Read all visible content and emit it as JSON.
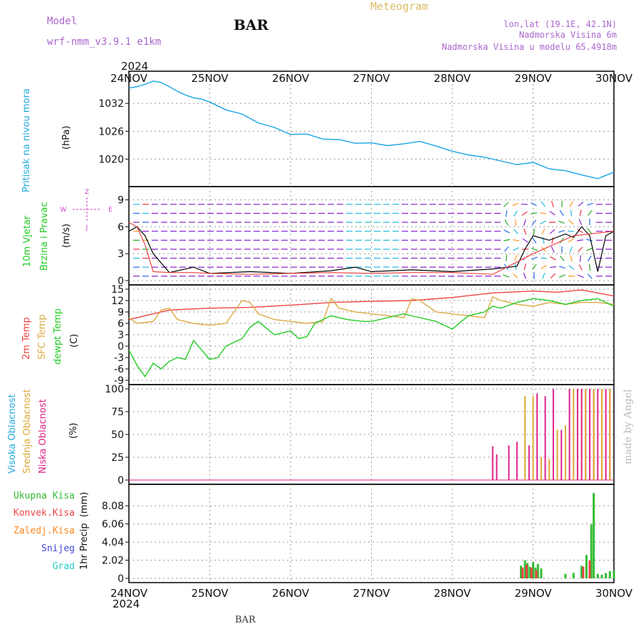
{
  "header": {
    "model_label": "Model",
    "model_name": "wrf-nmm_v3.9.1 e1km",
    "station": "BAR",
    "app_title": "Meteogram",
    "coords": "lon,lat (19.1E, 42.1N)",
    "elevation": "Nadmorska Visina 6m",
    "model_elevation": "Nadmorska Visina u modelu 65.4918m",
    "year": "2024",
    "footer_station": "BAR",
    "credit": "made by Angel"
  },
  "colors": {
    "pressure": "#1aa3e6",
    "temp2m": "#ee4444",
    "sfc_temp": "#ddaa44",
    "dewpoint": "#22cc22",
    "high_cloud": "#22aadd",
    "mid_cloud": "#ddaa33",
    "low_cloud": "#dd2288",
    "total_precip": "#33bb33",
    "conv_precip": "#ee4444",
    "frozen_precip": "#ff8822",
    "snow": "#4444dd",
    "hail": "#22cccc",
    "wind_speed_line": "#000000",
    "wind_gust_line": "#ee4444",
    "wind_compass": "#cc44cc",
    "header_text": "#aa66cc",
    "title_text": "#ddbb66"
  },
  "chart_data": [
    {
      "type": "line",
      "panel": "pressure",
      "ylabel_main": "Pritisak na nivou mora",
      "ylabel_unit": "(hPa)",
      "x_ticks": [
        "24NOV",
        "25NOV",
        "26NOV",
        "27NOV",
        "28NOV",
        "29NOV",
        "30NOV"
      ],
      "yticks": [
        "1020",
        "1026",
        "1032"
      ],
      "ylim": [
        1015,
        1038
      ],
      "series": [
        {
          "x": [
            0,
            0.1,
            0.2,
            0.3,
            0.4,
            0.5,
            0.6,
            0.7,
            0.8,
            0.9,
            1.0,
            1.2,
            1.4,
            1.6,
            1.8,
            2.0,
            2.2,
            2.4,
            2.6,
            2.8,
            3.0,
            3.2,
            3.4,
            3.6,
            3.8,
            4.0,
            4.2,
            4.4,
            4.6,
            4.8,
            5.0,
            5.2,
            5.4,
            5.6,
            5.8,
            6.0
          ],
          "values": [
            1035.3,
            1035.6,
            1036.1,
            1036.8,
            1036.5,
            1035.6,
            1034.6,
            1033.8,
            1033.2,
            1032.9,
            1032.3,
            1030.6,
            1029.7,
            1027.8,
            1026.8,
            1025.3,
            1025.4,
            1024.3,
            1024.2,
            1023.4,
            1023.5,
            1022.9,
            1023.3,
            1023.8,
            1022.8,
            1021.7,
            1020.9,
            1020.4,
            1019.6,
            1018.8,
            1019.3,
            1017.9,
            1017.5,
            1016.6,
            1015.8,
            1017.2
          ]
        }
      ]
    },
    {
      "type": "line",
      "panel": "wind",
      "ylabel_main": "10m Vjetar",
      "ylabel_sub": "Brzina i Pravac",
      "ylabel_unit": "(m/s)",
      "compass": {
        "north": "Z",
        "south": "J",
        "west": "W",
        "east": "E"
      },
      "yticks": [
        "0",
        "3",
        "6",
        "9"
      ],
      "ylim": [
        0,
        10
      ],
      "series": [
        {
          "x": [
            0,
            0.1,
            0.2,
            0.3,
            0.5,
            0.8,
            1.0,
            1.5,
            2.0,
            2.5,
            2.8,
            3.0,
            3.5,
            4.0,
            4.5,
            4.8,
            4.9,
            5.0,
            5.2,
            5.4,
            5.5,
            5.6,
            5.7,
            5.8,
            5.9,
            6.0
          ],
          "values": [
            5.5,
            6.0,
            5.0,
            3.0,
            0.9,
            1.5,
            0.8,
            1.0,
            0.8,
            1.1,
            1.5,
            1.0,
            1.2,
            1.0,
            1.3,
            1.6,
            3.5,
            5.0,
            4.5,
            5.2,
            4.8,
            6.0,
            5.0,
            1.0,
            5.0,
            5.5
          ]
        },
        {
          "x": [
            0,
            0.1,
            0.2,
            0.3,
            0.5,
            0.8,
            1.0,
            1.5,
            2.0,
            2.5,
            3.0,
            3.5,
            4.0,
            4.5,
            5.0,
            5.5,
            6.0
          ],
          "values": [
            6.5,
            6.0,
            4.0,
            1.0,
            0.9,
            0.9,
            0.8,
            0.7,
            0.8,
            0.9,
            0.8,
            0.9,
            0.9,
            0.7,
            3.0,
            5.0,
            5.5
          ]
        }
      ]
    },
    {
      "type": "line",
      "panel": "temperature",
      "labels": [
        "2m Temp",
        "SFC Temp",
        "dewpt Temp"
      ],
      "ylabel_unit": "(C)",
      "yticks": [
        "-9",
        "-6",
        "-3",
        "0",
        "3",
        "6",
        "9",
        "12",
        "15"
      ],
      "ylim": [
        -9,
        15
      ],
      "series": [
        {
          "name": "2m Temp",
          "x": [
            0,
            0.2,
            0.5,
            1.0,
            1.5,
            2.0,
            2.5,
            3.0,
            3.5,
            4.0,
            4.5,
            5.0,
            5.3,
            5.6,
            6.0
          ],
          "values": [
            7.0,
            8.0,
            9.5,
            10.0,
            10.2,
            10.8,
            11.5,
            11.8,
            12.0,
            12.8,
            14.0,
            14.5,
            14.2,
            14.8,
            13.2
          ]
        },
        {
          "name": "SFC Temp",
          "x": [
            0,
            0.1,
            0.3,
            0.4,
            0.5,
            0.6,
            0.8,
            1.0,
            1.2,
            1.4,
            1.5,
            1.6,
            1.8,
            2.0,
            2.2,
            2.4,
            2.5,
            2.6,
            2.8,
            3.0,
            3.2,
            3.4,
            3.5,
            3.6,
            3.8,
            4.0,
            4.2,
            4.4,
            4.5,
            4.6,
            4.8,
            5.0,
            5.2,
            5.4,
            5.6,
            5.8,
            6.0
          ],
          "values": [
            7.5,
            6.0,
            6.5,
            9.5,
            10.0,
            7.0,
            6.0,
            5.5,
            6.0,
            12.0,
            11.5,
            8.5,
            7.0,
            6.5,
            6.0,
            6.5,
            12.5,
            10.0,
            9.0,
            8.5,
            8.0,
            7.5,
            12.5,
            12.0,
            9.0,
            8.5,
            8.0,
            7.5,
            13.0,
            12.0,
            11.0,
            10.5,
            11.5,
            11.0,
            11.5,
            11.5,
            11.0
          ]
        },
        {
          "name": "dewpt Temp",
          "x": [
            0,
            0.1,
            0.2,
            0.3,
            0.4,
            0.5,
            0.6,
            0.7,
            0.8,
            0.9,
            1.0,
            1.1,
            1.2,
            1.4,
            1.5,
            1.6,
            1.8,
            2.0,
            2.1,
            2.2,
            2.3,
            2.5,
            2.7,
            2.9,
            3.0,
            3.2,
            3.4,
            3.6,
            3.8,
            4.0,
            4.2,
            4.4,
            4.5,
            4.6,
            4.8,
            5.0,
            5.2,
            5.4,
            5.6,
            5.8,
            6.0
          ],
          "values": [
            -1.0,
            -5.0,
            -8.0,
            -4.5,
            -6.0,
            -4.0,
            -3.0,
            -3.5,
            1.5,
            -1.0,
            -3.5,
            -3.0,
            0.0,
            2.0,
            5.0,
            6.5,
            3.0,
            4.0,
            2.0,
            2.5,
            6.0,
            8.0,
            7.0,
            6.5,
            6.5,
            7.5,
            8.5,
            7.5,
            6.5,
            4.5,
            8.0,
            9.0,
            10.5,
            10.0,
            11.5,
            12.5,
            12.0,
            11.0,
            12.0,
            12.5,
            10.5
          ]
        }
      ]
    },
    {
      "type": "bar",
      "panel": "clouds",
      "labels": [
        "Visoka Oblacnost",
        "Srednja Oblacnost",
        "Niska Oblacnost"
      ],
      "ylabel_unit": "(%)",
      "yticks": [
        "0",
        "25",
        "50",
        "75",
        "100"
      ],
      "ylim": [
        0,
        100
      ],
      "series": [
        {
          "name": "Niska Oblacnost",
          "x": [
            4.5,
            4.55,
            4.7,
            4.8,
            4.95,
            5.05,
            5.15,
            5.25,
            5.35,
            5.45,
            5.55,
            5.6,
            5.65,
            5.7,
            5.75,
            5.8,
            5.85,
            5.9,
            5.95
          ],
          "values": [
            37,
            28,
            38,
            42,
            38,
            95,
            92,
            100,
            55,
            100,
            100,
            100,
            100,
            100,
            100,
            100,
            100,
            100,
            100
          ]
        },
        {
          "name": "Srednja Oblacnost",
          "x": [
            4.9,
            5.0,
            5.1,
            5.2,
            5.3,
            5.4,
            5.5,
            5.65,
            5.75,
            5.85,
            5.95
          ],
          "values": [
            92,
            92,
            25,
            23,
            55,
            60,
            100,
            100,
            100,
            100,
            100
          ]
        }
      ]
    },
    {
      "type": "bar",
      "panel": "precipitation",
      "labels": [
        "Ukupna Kisa",
        "Konvek.Kisa",
        "Zaledj.Kisa",
        "Snijeg",
        "Grad"
      ],
      "ylabel_main": "1hr Precip",
      "ylabel_unit": "(mm)",
      "yticks": [
        "0",
        "2.02",
        "4.04",
        "6.06",
        "8.08"
      ],
      "ylim": [
        0,
        10
      ],
      "series": [
        {
          "name": "Ukupna Kisa",
          "x": [
            4.85,
            4.9,
            4.93,
            4.96,
            5.0,
            5.03,
            5.06,
            5.1,
            5.4,
            5.5,
            5.6,
            5.66,
            5.72,
            5.75,
            5.8,
            5.85,
            5.9,
            5.95,
            6.0
          ],
          "values": [
            1.4,
            2.0,
            1.7,
            1.3,
            1.8,
            1.2,
            1.6,
            1.1,
            0.5,
            0.6,
            1.4,
            2.6,
            6.0,
            9.5,
            0.5,
            0.4,
            0.6,
            0.8,
            0.9
          ]
        },
        {
          "name": "Konvek.Kisa",
          "x": [
            4.87,
            4.92,
            4.98,
            5.04,
            5.62,
            5.7
          ],
          "values": [
            1.2,
            1.5,
            1.2,
            0.9,
            1.3,
            2.0
          ]
        }
      ]
    }
  ]
}
